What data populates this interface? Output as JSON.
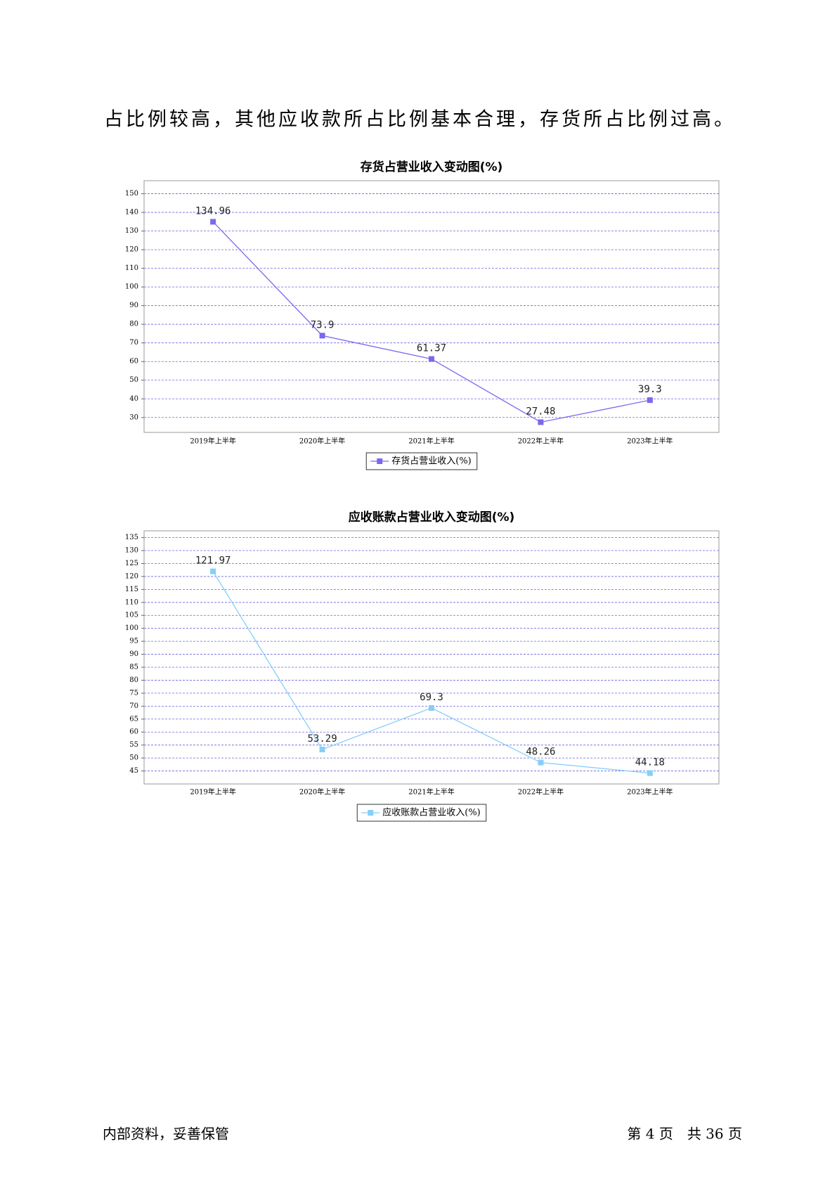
{
  "body_text": "占比例较高，其他应收款所占比例基本合理，存货所占比例过高。",
  "chart_data": [
    {
      "type": "line",
      "title": "存货占营业收入变动图(%)",
      "categories": [
        "2019年上半年",
        "2020年上半年",
        "2021年上半年",
        "2022年上半年",
        "2023年上半年"
      ],
      "series": [
        {
          "name": "存货占营业收入(%)",
          "color": "#7b68ee",
          "values": [
            134.96,
            73.9,
            61.37,
            27.48,
            39.3
          ]
        }
      ],
      "ylim": [
        22,
        157
      ],
      "yticks": [
        30,
        40,
        50,
        60,
        70,
        80,
        90,
        100,
        110,
        120,
        130,
        140,
        150
      ],
      "grid": true
    },
    {
      "type": "line",
      "title": "应收账款占营业收入变动图(%)",
      "categories": [
        "2019年上半年",
        "2020年上半年",
        "2021年上半年",
        "2022年上半年",
        "2023年上半年"
      ],
      "series": [
        {
          "name": "应收账款占营业收入(%)",
          "color": "#87cefa",
          "values": [
            121.97,
            53.29,
            69.3,
            48.26,
            44.18
          ]
        }
      ],
      "ylim": [
        40,
        137.6
      ],
      "yticks": [
        45,
        50,
        55,
        60,
        65,
        70,
        75,
        80,
        85,
        90,
        95,
        100,
        105,
        110,
        115,
        120,
        125,
        130,
        135
      ],
      "grid": true
    }
  ],
  "footer": {
    "left": "内部资料，妥善保管",
    "right": "第 4 页　共 36 页"
  }
}
